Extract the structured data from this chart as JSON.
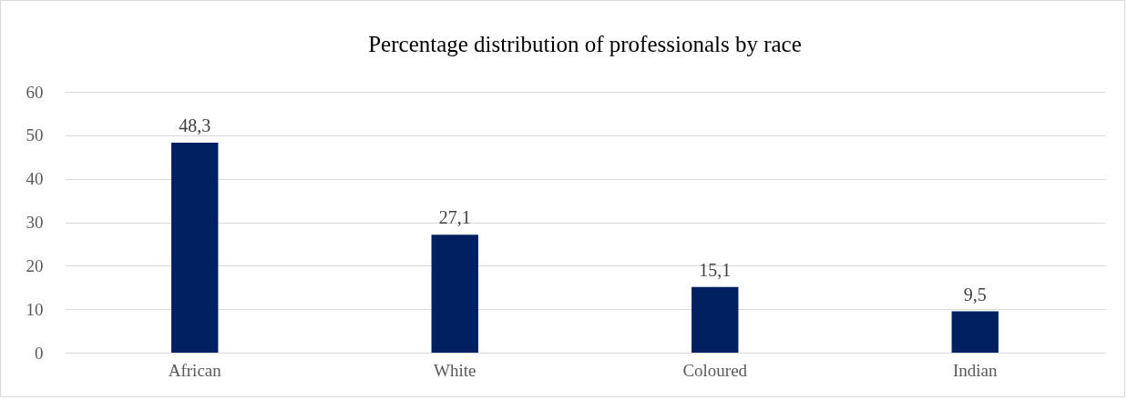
{
  "chart_data": {
    "type": "bar",
    "title": "Percentage distribution of professionals by race",
    "categories": [
      "African",
      "White",
      "Coloured",
      "Indian"
    ],
    "values": [
      48.3,
      27.1,
      15.1,
      9.5
    ],
    "value_labels": [
      "48,3",
      "27,1",
      "15,1",
      "9,5"
    ],
    "color": "#002060",
    "ylim": [
      0,
      60
    ],
    "yticks": [
      0,
      10,
      20,
      30,
      40,
      50,
      60
    ],
    "grid": "y"
  }
}
